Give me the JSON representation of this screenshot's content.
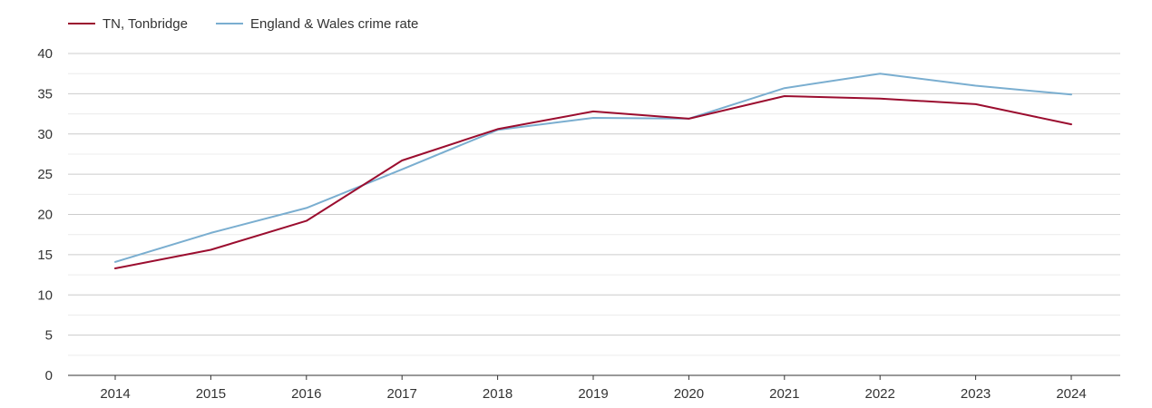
{
  "chart_data": {
    "type": "line",
    "title": "",
    "xlabel": "",
    "ylabel": "",
    "categories": [
      "2014",
      "2015",
      "2016",
      "2017",
      "2018",
      "2019",
      "2020",
      "2021",
      "2022",
      "2023",
      "2024"
    ],
    "ylim": [
      0,
      40
    ],
    "yticks": [
      "0",
      "5",
      "10",
      "15",
      "20",
      "25",
      "30",
      "35",
      "40"
    ],
    "grid": true,
    "legend_position": "top-left",
    "series": [
      {
        "name": "TN, Tonbridge",
        "color": "#9b0d2f",
        "values": [
          13.3,
          15.6,
          19.2,
          26.7,
          30.6,
          32.8,
          31.9,
          34.7,
          34.4,
          33.7,
          31.2
        ]
      },
      {
        "name": "England & Wales crime rate",
        "color": "#7aaed0",
        "values": [
          14.1,
          17.7,
          20.8,
          25.6,
          30.5,
          32.0,
          31.9,
          35.7,
          37.5,
          36.0,
          34.9
        ]
      }
    ]
  }
}
